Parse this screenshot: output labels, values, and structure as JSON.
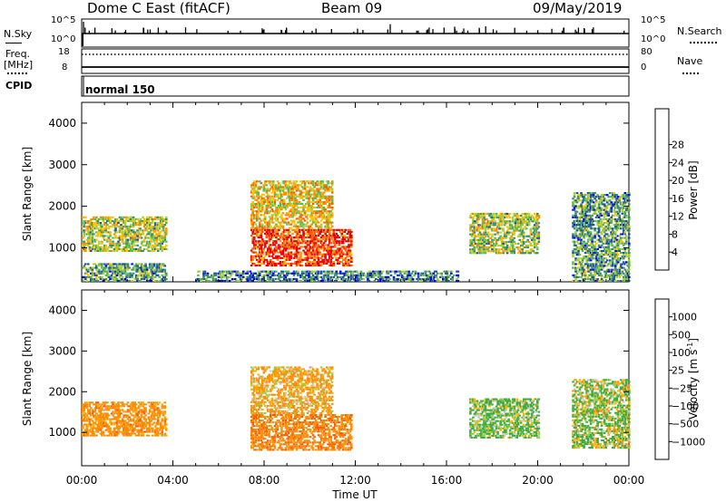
{
  "header": {
    "site": "Dome C East (fitACF)",
    "beam": "Beam 09",
    "date": "09/May/2019"
  },
  "params": {
    "nsky_label": "N.Sky",
    "nsky_ticks": [
      "10^5",
      "10^0"
    ],
    "nsearch_label": "N.Search",
    "freq_label": "Freq.",
    "freq_unit": "[MHz]",
    "freq_ticks": [
      "18",
      "8"
    ],
    "nave_label": "Nave",
    "nave_ticks": [
      "80",
      "0"
    ],
    "cpid_label": "CPID",
    "cpid_value": "normal 150"
  },
  "colors": {
    "power_scale": [
      "#0000ee",
      "#1f4fa0",
      "#3c8c6a",
      "#58b84c",
      "#a8d030",
      "#ffc000",
      "#ff8c00",
      "#ff5a00",
      "#ee0000"
    ],
    "velocity_scale": [
      "#ee0000",
      "#ff5a00",
      "#ff8c00",
      "#ffb000",
      "#c8c8c8",
      "#9ccc40",
      "#3caa3c",
      "#2f7a7a",
      "#2050c0"
    ],
    "ground_scatter": "#a0a0a0"
  },
  "chart_data": [
    {
      "type": "heatmap",
      "panel": "power",
      "xlabel": "",
      "ylabel": "Slant Range [km]",
      "xlim": [
        "00:00",
        "24:00"
      ],
      "ylim": [
        180,
        4500
      ],
      "yticks": [
        "1000",
        "2000",
        "3000",
        "4000"
      ],
      "colorbar": {
        "label": "Power [dB]",
        "range": [
          0,
          30
        ],
        "ticks": [
          "4",
          "8",
          "12",
          "16",
          "20",
          "24",
          "28"
        ]
      },
      "regions": [
        {
          "t": [
            0.0,
            3.7
          ],
          "r": [
            900,
            1750
          ],
          "value_dB": 14
        },
        {
          "t": [
            0.0,
            3.7
          ],
          "r": [
            180,
            600
          ],
          "value_dB": 10
        },
        {
          "t": [
            7.4,
            11.8
          ],
          "r": [
            550,
            1450
          ],
          "value_dB": 27
        },
        {
          "t": [
            7.4,
            11.0
          ],
          "r": [
            1450,
            2600
          ],
          "value_dB": 18
        },
        {
          "t": [
            5.0,
            16.5
          ],
          "r": [
            180,
            450
          ],
          "value_dB": 8
        },
        {
          "t": [
            17.0,
            20.0
          ],
          "r": [
            850,
            1800
          ],
          "value_dB": 14
        },
        {
          "t": [
            21.5,
            24.0
          ],
          "r": [
            180,
            2300
          ],
          "value_dB": 10
        }
      ]
    },
    {
      "type": "heatmap",
      "panel": "velocity",
      "xlabel": "Time UT",
      "ylabel": "Slant Range [km]",
      "xlim": [
        "00:00",
        "24:00"
      ],
      "ylim": [
        180,
        4500
      ],
      "xticks": [
        "00:00",
        "04:00",
        "08:00",
        "12:00",
        "16:00",
        "20:00",
        "00:00"
      ],
      "yticks": [
        "1000",
        "2000",
        "3000",
        "4000"
      ],
      "colorbar": {
        "label": "Velocity [m s",
        "label_exp": "-1",
        "label_close": "]",
        "ticks": [
          "1000",
          "500",
          "100",
          "25",
          "−25",
          "−100",
          "−500",
          "−1000"
        ]
      },
      "regions": [
        {
          "t": [
            0.0,
            3.7
          ],
          "r": [
            900,
            1750
          ],
          "value_ms": -300
        },
        {
          "t": [
            7.4,
            11.8
          ],
          "r": [
            550,
            1450
          ],
          "value_ms": -400
        },
        {
          "t": [
            7.4,
            11.0
          ],
          "r": [
            1450,
            2600
          ],
          "value_ms": -150
        },
        {
          "t": [
            17.0,
            20.0
          ],
          "r": [
            850,
            1800
          ],
          "value_ms": 150
        },
        {
          "t": [
            21.5,
            24.0
          ],
          "r": [
            600,
            2300
          ],
          "value_ms": 100
        }
      ]
    }
  ]
}
